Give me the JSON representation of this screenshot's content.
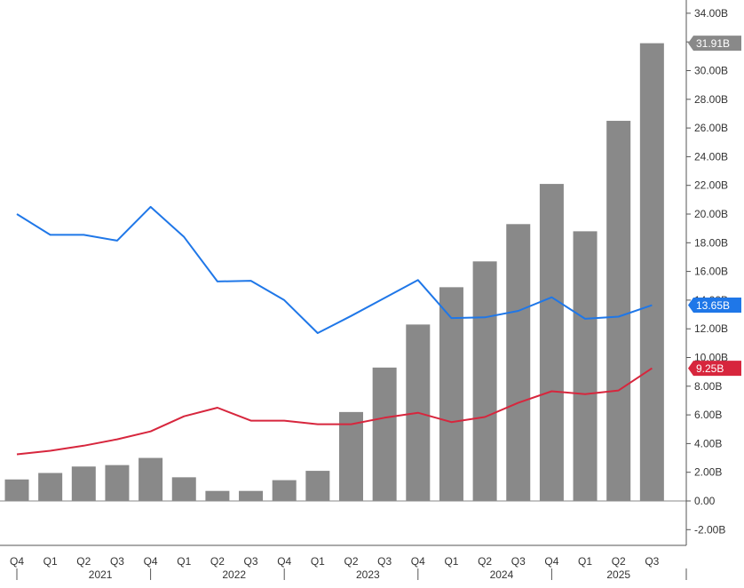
{
  "chart_data": {
    "type": "bar+line",
    "title": "",
    "xlabel": "",
    "ylabel": "",
    "ylim": [
      -3,
      35
    ],
    "y_ticks": [
      -2,
      0,
      2,
      4,
      6,
      8,
      10,
      12,
      14,
      16,
      18,
      20,
      22,
      24,
      26,
      28,
      30,
      32,
      34
    ],
    "y_tick_labels": [
      "-2.00B",
      "0.00",
      "2.00B",
      "4.00B",
      "6.00B",
      "8.00B",
      "10.00B",
      "12.00B",
      "14.00B",
      "16.00B",
      "18.00B",
      "20.00B",
      "22.00B",
      "24.00B",
      "26.00B",
      "28.00B",
      "30.00B",
      "32.00B",
      "34.00B"
    ],
    "y_axis_side": "right",
    "grid": false,
    "categories": [
      "Q4",
      "Q1",
      "Q2",
      "Q3",
      "Q4",
      "Q1",
      "Q2",
      "Q3",
      "Q4",
      "Q1",
      "Q2",
      "Q3",
      "Q4",
      "Q1",
      "Q2",
      "Q3",
      "Q4",
      "Q1",
      "Q2",
      "Q3"
    ],
    "years": [
      {
        "label": "2021",
        "from": 1,
        "to": 4
      },
      {
        "label": "2022",
        "from": 5,
        "to": 8
      },
      {
        "label": "2023",
        "from": 9,
        "to": 12
      },
      {
        "label": "2024",
        "from": 13,
        "to": 16
      },
      {
        "label": "2025",
        "from": 17,
        "to": 19
      }
    ],
    "series": [
      {
        "type": "bar",
        "color": "#898989",
        "values": [
          1.5,
          1.95,
          2.4,
          2.5,
          3.0,
          1.65,
          0.7,
          0.7,
          1.45,
          2.1,
          6.2,
          9.3,
          12.3,
          14.9,
          16.7,
          19.3,
          22.1,
          18.8,
          26.5,
          31.91
        ],
        "last_label": "31.91B"
      },
      {
        "type": "line",
        "color": "#1f77e8",
        "values": [
          20.0,
          18.55,
          18.55,
          18.15,
          20.5,
          18.4,
          15.3,
          15.35,
          14.0,
          11.7,
          12.9,
          14.15,
          15.4,
          12.75,
          12.8,
          13.25,
          14.2,
          12.7,
          12.85,
          13.65
        ],
        "last_label": "13.65B",
        "badge_bg": "#1f77e8"
      },
      {
        "type": "line",
        "color": "#d7263d",
        "values": [
          3.25,
          3.5,
          3.85,
          4.3,
          4.85,
          5.9,
          6.5,
          5.6,
          5.6,
          5.35,
          5.35,
          5.8,
          6.15,
          5.5,
          5.85,
          6.85,
          7.65,
          7.45,
          7.7,
          9.25
        ],
        "last_label": "9.25B",
        "badge_bg": "#d7263d"
      }
    ]
  }
}
